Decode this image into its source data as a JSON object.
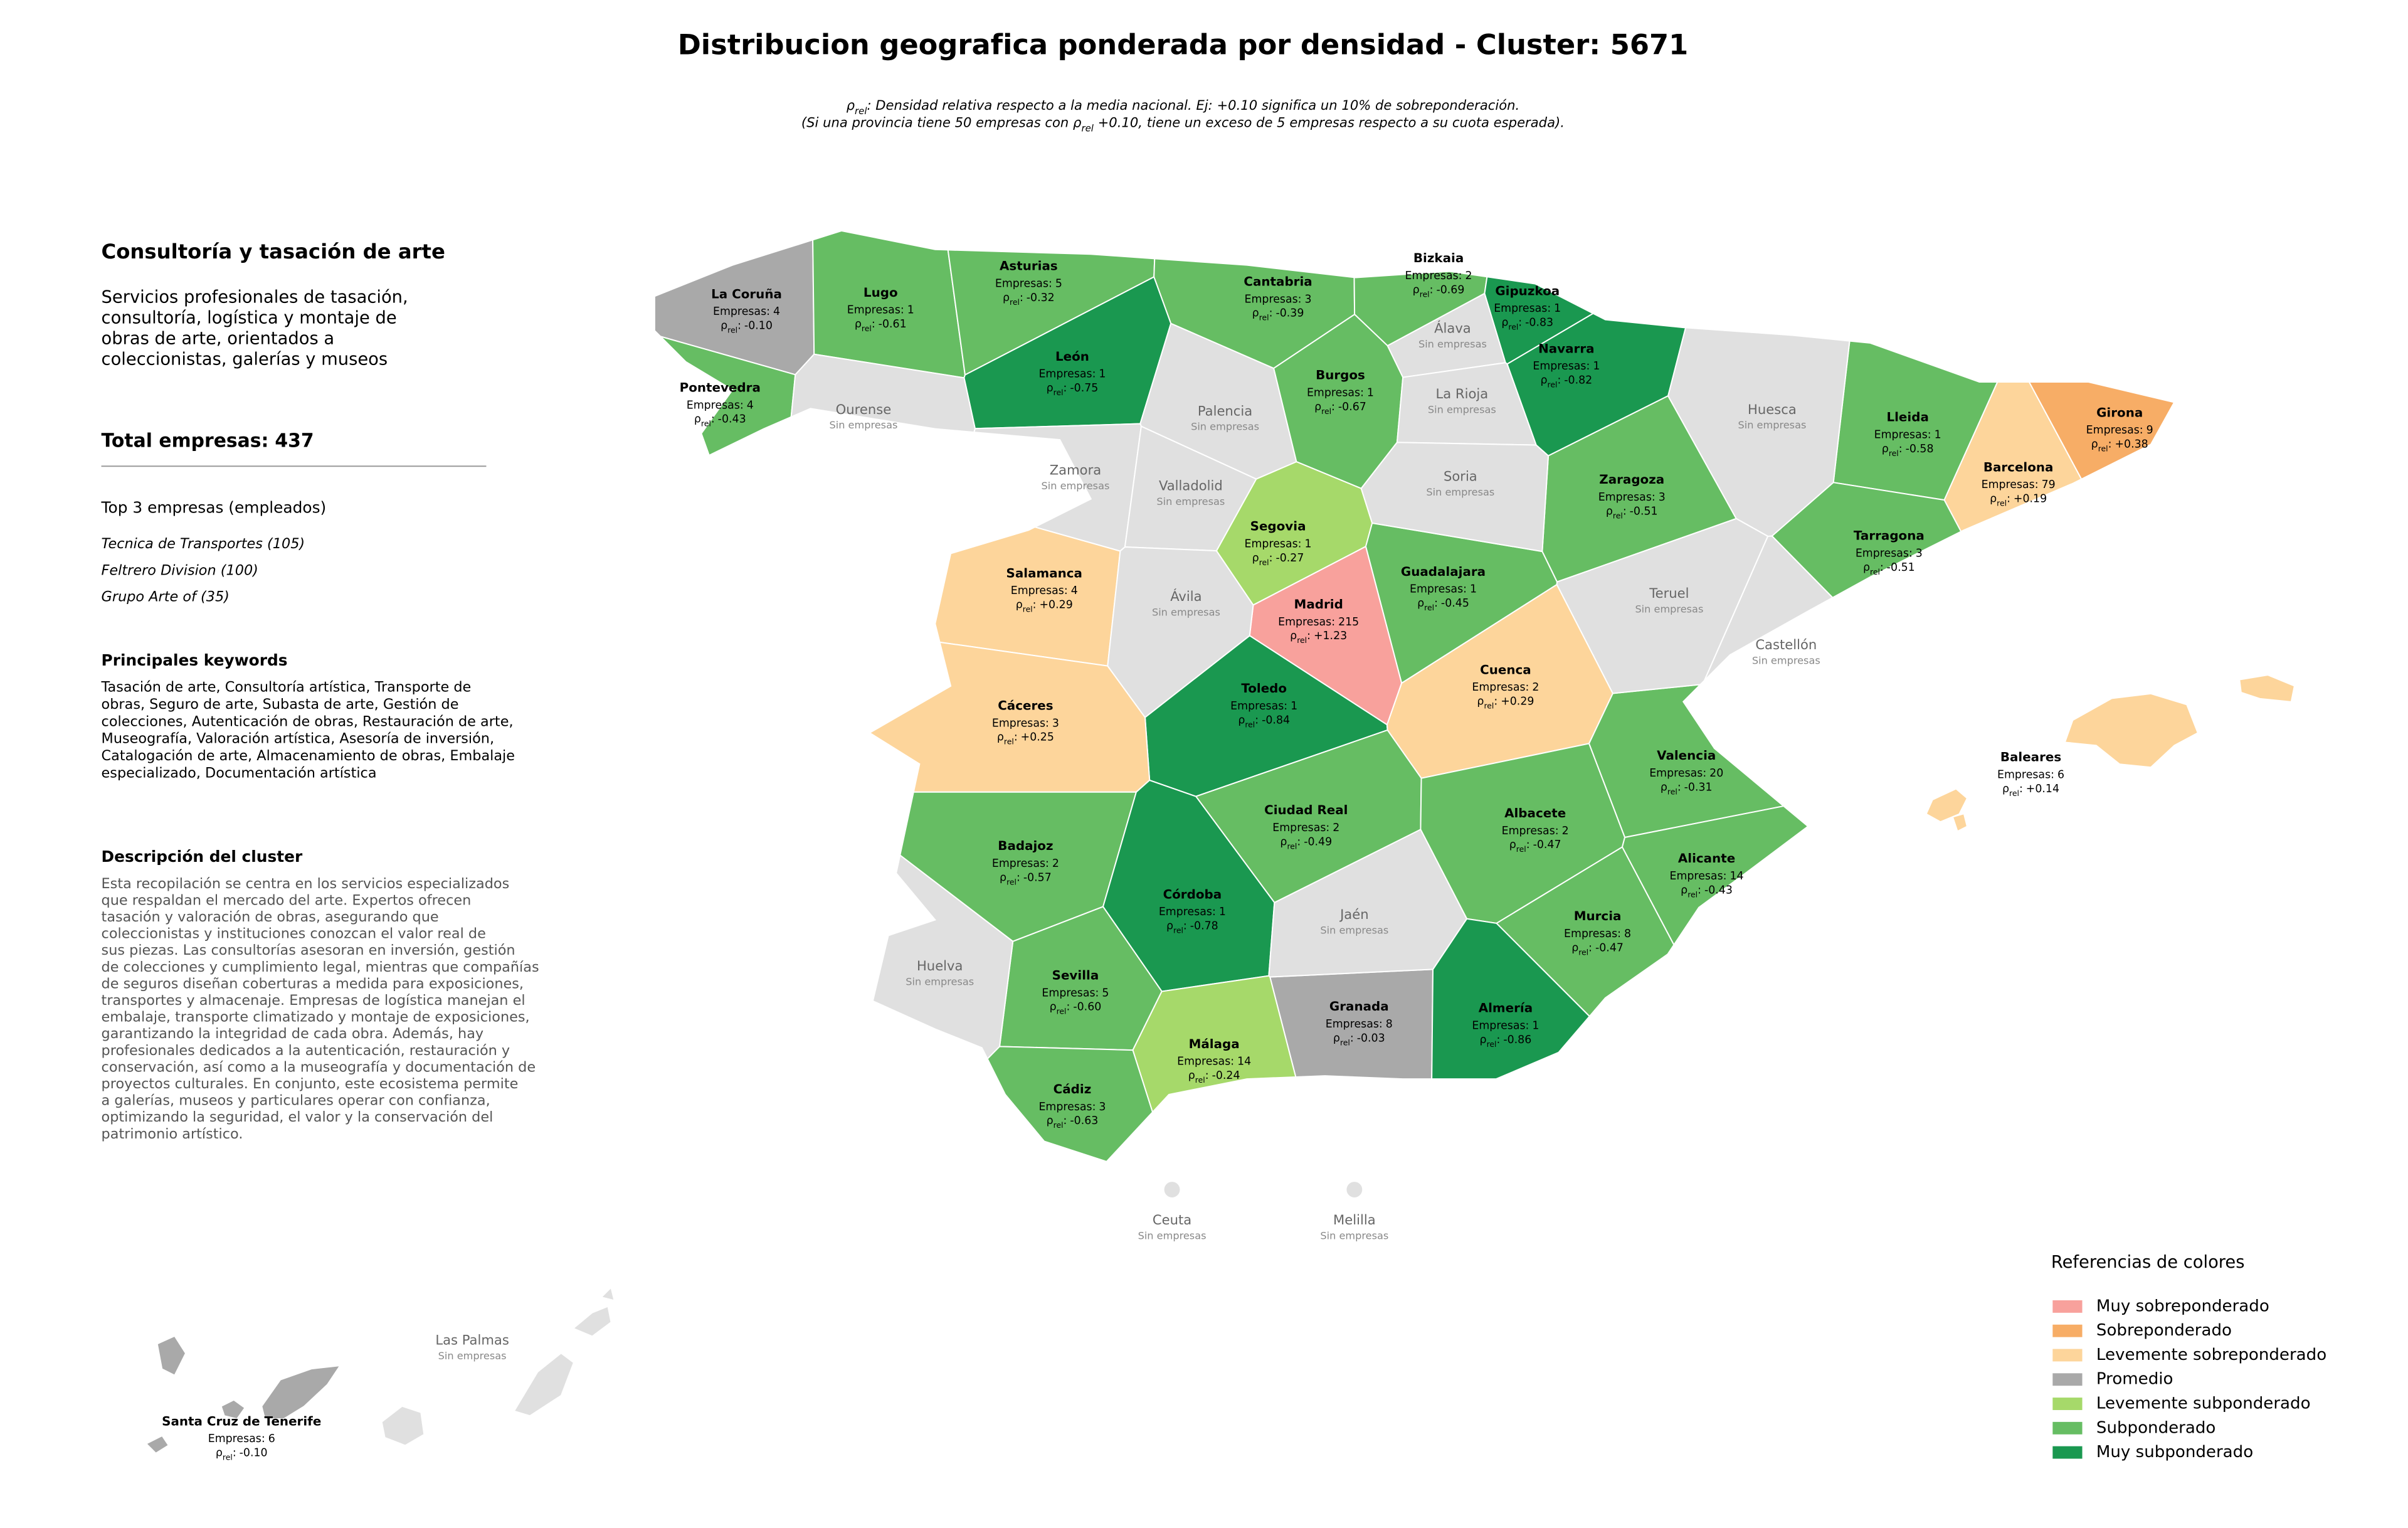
{
  "title": "Distribucion geografica ponderada por densidad - Cluster: 5671",
  "subtitle": {
    "line1": [
      "ρ",
      "rel",
      ": Densidad relativa respecto a la media nacional. Ej: +0.10 significa un 10% de sobreponderación."
    ],
    "line2": [
      "(Si una provincia tiene 50 empresas con ρ",
      "rel",
      " +0.10, tiene un exceso de 5 empresas respecto a su cuota esperada)."
    ]
  },
  "panel": {
    "heading": "Consultoría y tasación de arte",
    "summary": [
      "Servicios profesionales de tasación,",
      "consultoría, logística y montaje de",
      "obras de arte, orientados a",
      "coleccionistas, galerías y museos"
    ],
    "total_label": "Total empresas:",
    "total": 437,
    "top_title": "Top 3 empresas (empleados)",
    "top": [
      "Tecnica de Transportes (105)",
      "Feltrero Division (100)",
      "Grupo Arte of (35)"
    ],
    "keywords_title": "Principales keywords",
    "keywords": [
      "Tasación de arte, Consultoría artística, Transporte de",
      "obras, Seguro de arte, Subasta de arte, Gestión de",
      "colecciones, Autenticación de obras, Restauración de arte,",
      "Museografía, Valoración artística, Asesoría de inversión,",
      "Catalogación de arte, Almacenamiento de obras, Embalaje",
      "especializado, Documentación artística"
    ],
    "description_title": "Descripción del cluster",
    "description": [
      "Esta recopilación se centra en los servicios especializados",
      "que respaldan el mercado del arte. Expertos ofrecen",
      "tasación y valoración de obras, asegurando que",
      "coleccionistas y instituciones conozcan el valor real de",
      "sus piezas. Las consultorías asesoran en inversión, gestión",
      "de colecciones y cumplimiento legal, mientras que compañías",
      "de seguros diseñan coberturas a medida para exposiciones,",
      "transportes y almacenaje. Empresas de logística manejan el",
      "embalaje, transporte climatizado y montaje de exposiciones,",
      "garantizando la integridad de cada obra. Además, hay",
      "profesionales dedicados a la autenticación, restauración y",
      "conservación, así como a la museografía y documentación de",
      "proyectos culturales. En conjunto, este ecosistema permite",
      "a galerías, museos y particulares operar con confianza,",
      "optimizando la seguridad, el valor y la conservación del",
      "patrimonio artístico."
    ]
  },
  "labels": {
    "companies": "Empresas:",
    "rho": "ρ",
    "rho_sub": "rel",
    "rho_sep": ":",
    "no_companies": "Sin empresas"
  },
  "no_data_color": "#e0e0e0",
  "provinces": [
    {
      "name": "La Coruña",
      "companies": 4,
      "rho": "-0.10",
      "color": "#a9a9a9"
    },
    {
      "name": "Lugo",
      "companies": 1,
      "rho": "-0.61",
      "color": "#66bd63"
    },
    {
      "name": "Asturias",
      "companies": 5,
      "rho": "-0.32",
      "color": "#66bd63"
    },
    {
      "name": "Cantabria",
      "companies": 3,
      "rho": "-0.39",
      "color": "#66bd63"
    },
    {
      "name": "Bizkaia",
      "companies": 2,
      "rho": "-0.69",
      "color": "#66bd63"
    },
    {
      "name": "Gipuzkoa",
      "companies": 1,
      "rho": "-0.83",
      "color": "#1a9850"
    },
    {
      "name": "Navarra",
      "companies": 1,
      "rho": "-0.82",
      "color": "#1a9850"
    },
    {
      "name": "León",
      "companies": 1,
      "rho": "-0.75",
      "color": "#1a9850"
    },
    {
      "name": "Pontevedra",
      "companies": 4,
      "rho": "-0.43",
      "color": "#66bd63"
    },
    {
      "name": "Burgos",
      "companies": 1,
      "rho": "-0.67",
      "color": "#66bd63"
    },
    {
      "name": "Lleida",
      "companies": 1,
      "rho": "-0.58",
      "color": "#66bd63"
    },
    {
      "name": "Girona",
      "companies": 9,
      "rho": "+0.38",
      "color": "#f7ad66"
    },
    {
      "name": "Barcelona",
      "companies": 79,
      "rho": "+0.19",
      "color": "#fdd59b"
    },
    {
      "name": "Zaragoza",
      "companies": 3,
      "rho": "-0.51",
      "color": "#66bd63"
    },
    {
      "name": "Segovia",
      "companies": 1,
      "rho": "-0.27",
      "color": "#a6d96a"
    },
    {
      "name": "Tarragona",
      "companies": 3,
      "rho": "-0.51",
      "color": "#66bd63"
    },
    {
      "name": "Salamanca",
      "companies": 4,
      "rho": "+0.29",
      "color": "#fdd59b"
    },
    {
      "name": "Guadalajara",
      "companies": 1,
      "rho": "-0.45",
      "color": "#66bd63"
    },
    {
      "name": "Madrid",
      "companies": 215,
      "rho": "+1.23",
      "color": "#f8a19c"
    },
    {
      "name": "Toledo",
      "companies": 1,
      "rho": "-0.84",
      "color": "#1a9850"
    },
    {
      "name": "Cuenca",
      "companies": 2,
      "rho": "+0.29",
      "color": "#fdd59b"
    },
    {
      "name": "Cáceres",
      "companies": 3,
      "rho": "+0.25",
      "color": "#fdd59b"
    },
    {
      "name": "Valencia",
      "companies": 20,
      "rho": "-0.31",
      "color": "#66bd63"
    },
    {
      "name": "Baleares",
      "companies": 6,
      "rho": "+0.14",
      "color": "#fdd59b"
    },
    {
      "name": "Ciudad Real",
      "companies": 2,
      "rho": "-0.49",
      "color": "#66bd63"
    },
    {
      "name": "Albacete",
      "companies": 2,
      "rho": "-0.47",
      "color": "#66bd63"
    },
    {
      "name": "Badajoz",
      "companies": 2,
      "rho": "-0.57",
      "color": "#66bd63"
    },
    {
      "name": "Alicante",
      "companies": 14,
      "rho": "-0.43",
      "color": "#66bd63"
    },
    {
      "name": "Córdoba",
      "companies": 1,
      "rho": "-0.78",
      "color": "#1a9850"
    },
    {
      "name": "Murcia",
      "companies": 8,
      "rho": "-0.47",
      "color": "#66bd63"
    },
    {
      "name": "Sevilla",
      "companies": 5,
      "rho": "-0.60",
      "color": "#66bd63"
    },
    {
      "name": "Granada",
      "companies": 8,
      "rho": "-0.03",
      "color": "#a9a9a9"
    },
    {
      "name": "Almería",
      "companies": 1,
      "rho": "-0.86",
      "color": "#1a9850"
    },
    {
      "name": "Málaga",
      "companies": 14,
      "rho": "-0.24",
      "color": "#a6d96a"
    },
    {
      "name": "Cádiz",
      "companies": 3,
      "rho": "-0.63",
      "color": "#66bd63"
    },
    {
      "name": "Santa Cruz de Tenerife",
      "companies": 6,
      "rho": "-0.10",
      "color": "#a9a9a9"
    }
  ],
  "empty_provinces": [
    {
      "name": "Ourense"
    },
    {
      "name": "Palencia"
    },
    {
      "name": "Álava"
    },
    {
      "name": "La Rioja"
    },
    {
      "name": "Huesca"
    },
    {
      "name": "Zamora"
    },
    {
      "name": "Valladolid"
    },
    {
      "name": "Soria"
    },
    {
      "name": "Teruel"
    },
    {
      "name": "Ávila"
    },
    {
      "name": "Castellón"
    },
    {
      "name": "Jaén"
    },
    {
      "name": "Huelva"
    },
    {
      "name": "Ceuta"
    },
    {
      "name": "Melilla"
    },
    {
      "name": "Las Palmas"
    }
  ],
  "legend": {
    "title": "Referencias de colores",
    "items": [
      {
        "name": "Muy sobreponderado",
        "color": "#f8a19c"
      },
      {
        "name": "Sobreponderado",
        "color": "#f7ad66"
      },
      {
        "name": "Levemente sobreponderado",
        "color": "#fdd59b"
      },
      {
        "name": "Promedio",
        "color": "#a9a9a9"
      },
      {
        "name": "Levemente subponderado",
        "color": "#a6d96a"
      },
      {
        "name": "Subponderado",
        "color": "#66bd63"
      },
      {
        "name": "Muy subponderado",
        "color": "#1a9850"
      }
    ]
  }
}
